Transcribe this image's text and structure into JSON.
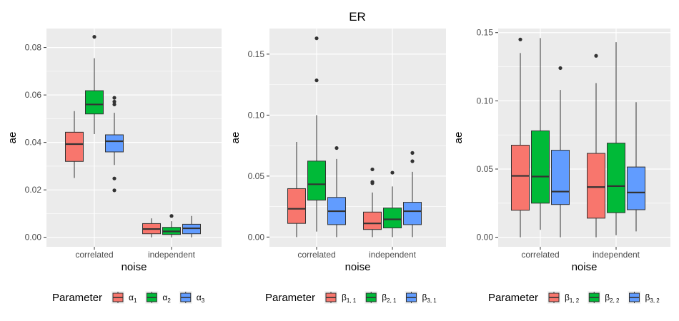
{
  "title": "ER",
  "chart_data": [
    {
      "type": "box",
      "xlabel": "noise",
      "ylabel": "ae",
      "ylim": [
        -0.004,
        0.088
      ],
      "yticks": [
        0.0,
        0.02,
        0.04,
        0.06,
        0.08
      ],
      "ytick_labels": [
        "0.00",
        "0.02",
        "0.04",
        "0.06",
        "0.08"
      ],
      "categories": [
        "correlated",
        "independent"
      ],
      "legend_title": "Parameter",
      "series": [
        {
          "name": "α1",
          "sym": "α",
          "sub": "1",
          "color": "#F8766D",
          "boxes": [
            {
              "q1": 0.032,
              "median": 0.0393,
              "q3": 0.0443,
              "whisker_low": 0.025,
              "whisker_high": 0.0532,
              "outliers": []
            },
            {
              "q1": 0.0015,
              "median": 0.0035,
              "q3": 0.0058,
              "whisker_low": 0.0,
              "whisker_high": 0.008,
              "outliers": []
            }
          ]
        },
        {
          "name": "α2",
          "sym": "α",
          "sub": "2",
          "color": "#00BA38",
          "boxes": [
            {
              "q1": 0.052,
              "median": 0.056,
              "q3": 0.0618,
              "whisker_low": 0.0435,
              "whisker_high": 0.0755,
              "outliers": [
                0.0845
              ]
            },
            {
              "q1": 0.0012,
              "median": 0.0025,
              "q3": 0.0042,
              "whisker_low": 0.0,
              "whisker_high": 0.0068,
              "outliers": [
                0.009
              ]
            }
          ]
        },
        {
          "name": "α3",
          "sym": "α",
          "sub": "3",
          "color": "#619CFF",
          "boxes": [
            {
              "q1": 0.036,
              "median": 0.0405,
              "q3": 0.0432,
              "whisker_low": 0.0305,
              "whisker_high": 0.0525,
              "outliers": [
                0.0588,
                0.0572,
                0.056,
                0.0248,
                0.0198
              ]
            },
            {
              "q1": 0.0015,
              "median": 0.0038,
              "q3": 0.0055,
              "whisker_low": 0.0,
              "whisker_high": 0.009,
              "outliers": []
            }
          ]
        }
      ]
    },
    {
      "type": "box",
      "xlabel": "noise",
      "ylabel": "ae",
      "ylim": [
        -0.008,
        0.171
      ],
      "yticks": [
        0.0,
        0.05,
        0.1,
        0.15
      ],
      "ytick_labels": [
        "0.00",
        "0.05",
        "0.10",
        "0.15"
      ],
      "categories": [
        "correlated",
        "independent"
      ],
      "legend_title": "Parameter",
      "series": [
        {
          "name": "β1,1",
          "sym": "β",
          "sub": "1, 1",
          "color": "#F8766D",
          "boxes": [
            {
              "q1": 0.0112,
              "median": 0.0232,
              "q3": 0.0397,
              "whisker_low": 0.0,
              "whisker_high": 0.078,
              "outliers": []
            },
            {
              "q1": 0.0062,
              "median": 0.0112,
              "q3": 0.0205,
              "whisker_low": 0.0,
              "whisker_high": 0.0365,
              "outliers": [
                0.0555,
                0.0452,
                0.0442
              ]
            }
          ]
        },
        {
          "name": "β2,1",
          "sym": "β",
          "sub": "2, 1",
          "color": "#00BA38",
          "boxes": [
            {
              "q1": 0.0303,
              "median": 0.0433,
              "q3": 0.0623,
              "whisker_low": 0.0045,
              "whisker_high": 0.1,
              "outliers": [
                0.163,
                0.1285
              ]
            },
            {
              "q1": 0.0075,
              "median": 0.0145,
              "q3": 0.0238,
              "whisker_low": 0.0,
              "whisker_high": 0.0415,
              "outliers": [
                0.0528
              ]
            }
          ]
        },
        {
          "name": "β3,1",
          "sym": "β",
          "sub": "3, 1",
          "color": "#619CFF",
          "boxes": [
            {
              "q1": 0.0102,
              "median": 0.0212,
              "q3": 0.0325,
              "whisker_low": 0.0,
              "whisker_high": 0.064,
              "outliers": [
                0.073
              ]
            },
            {
              "q1": 0.0102,
              "median": 0.0212,
              "q3": 0.0285,
              "whisker_low": 0.0,
              "whisker_high": 0.0535,
              "outliers": [
                0.069,
                0.0622
              ]
            }
          ]
        }
      ]
    },
    {
      "type": "box",
      "xlabel": "noise",
      "ylabel": "ae",
      "ylim": [
        -0.007,
        0.153
      ],
      "yticks": [
        0.0,
        0.05,
        0.1,
        0.15
      ],
      "ytick_labels": [
        "0.00",
        "0.05",
        "0.10",
        "0.15"
      ],
      "categories": [
        "correlated",
        "independent"
      ],
      "legend_title": "Parameter",
      "series": [
        {
          "name": "β1,2",
          "sym": "β",
          "sub": "1, 2",
          "color": "#F8766D",
          "boxes": [
            {
              "q1": 0.0198,
              "median": 0.045,
              "q3": 0.0675,
              "whisker_low": 0.0,
              "whisker_high": 0.135,
              "outliers": [
                0.145
              ]
            },
            {
              "q1": 0.014,
              "median": 0.0368,
              "q3": 0.0615,
              "whisker_low": 0.0,
              "whisker_high": 0.113,
              "outliers": [
                0.133
              ]
            }
          ]
        },
        {
          "name": "β2,2",
          "sym": "β",
          "sub": "2, 2",
          "color": "#00BA38",
          "boxes": [
            {
              "q1": 0.025,
              "median": 0.0445,
              "q3": 0.078,
              "whisker_low": 0.0055,
              "whisker_high": 0.146,
              "outliers": []
            },
            {
              "q1": 0.018,
              "median": 0.0375,
              "q3": 0.069,
              "whisker_low": 0.0015,
              "whisker_high": 0.143,
              "outliers": []
            }
          ]
        },
        {
          "name": "β3,2",
          "sym": "β",
          "sub": "3, 2",
          "color": "#619CFF",
          "boxes": [
            {
              "q1": 0.024,
              "median": 0.0335,
              "q3": 0.0638,
              "whisker_low": 0.0,
              "whisker_high": 0.108,
              "outliers": [
                0.124
              ]
            },
            {
              "q1": 0.0202,
              "median": 0.0328,
              "q3": 0.0515,
              "whisker_low": 0.0043,
              "whisker_high": 0.099,
              "outliers": []
            }
          ]
        }
      ]
    }
  ]
}
